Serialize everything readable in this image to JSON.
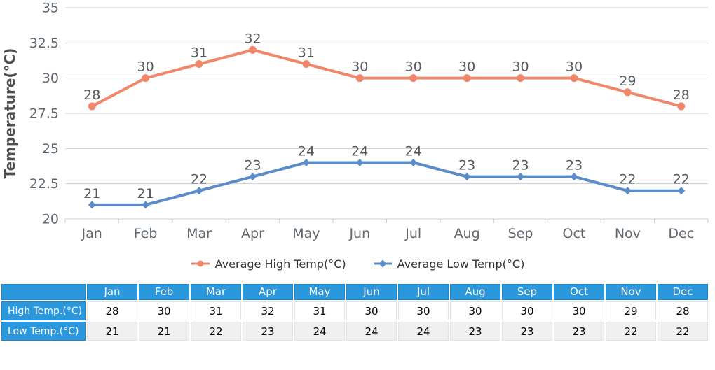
{
  "chart_data": {
    "type": "line",
    "title": "",
    "xlabel": "",
    "ylabel": "Temperature(°C)",
    "categories": [
      "Jan",
      "Feb",
      "Mar",
      "Apr",
      "May",
      "Jun",
      "Jul",
      "Aug",
      "Sep",
      "Oct",
      "Nov",
      "Dec"
    ],
    "series": [
      {
        "name": "Average High Temp(°C)",
        "values": [
          28,
          30,
          31,
          32,
          31,
          30,
          30,
          30,
          30,
          30,
          29,
          28
        ],
        "color": "#F0876B",
        "marker": "circle"
      },
      {
        "name": "Average Low Temp(°C)",
        "values": [
          21,
          21,
          22,
          23,
          24,
          24,
          24,
          23,
          23,
          23,
          22,
          22
        ],
        "color": "#5A8CC9",
        "marker": "diamond"
      }
    ],
    "ylim": [
      20,
      35
    ],
    "yticks": [
      "20",
      "22.5",
      "25",
      "27.5",
      "30",
      "32.5",
      "35"
    ],
    "grid": true,
    "legend_position": "bottom",
    "show_point_labels": true
  },
  "legend": {
    "items": [
      {
        "label": "Average High Temp(°C)"
      },
      {
        "label": "Average Low Temp(°C)"
      }
    ]
  },
  "table": {
    "corner_label": "",
    "month_headers": [
      "Jan",
      "Feb",
      "Mar",
      "Apr",
      "May",
      "Jun",
      "Jul",
      "Aug",
      "Sep",
      "Oct",
      "Nov",
      "Dec"
    ],
    "rows": [
      {
        "label": "High Temp.(°C)",
        "values": [
          "28",
          "30",
          "31",
          "32",
          "31",
          "30",
          "30",
          "30",
          "30",
          "30",
          "29",
          "28"
        ]
      },
      {
        "label": "Low Temp.(°C)",
        "values": [
          "21",
          "21",
          "22",
          "23",
          "24",
          "24",
          "24",
          "23",
          "23",
          "23",
          "22",
          "22"
        ]
      }
    ]
  },
  "colors": {
    "high_series": "#F0876B",
    "low_series": "#5A8CC9",
    "table_header_bg": "#2B98DE",
    "table_alt_row_bg": "#F0F0F0",
    "grid_line": "#CBCED2",
    "axis_text": "#60686F",
    "point_label_text": "#55585C",
    "axis_title_text": "#4E4E52",
    "legend_text": "#333333"
  }
}
